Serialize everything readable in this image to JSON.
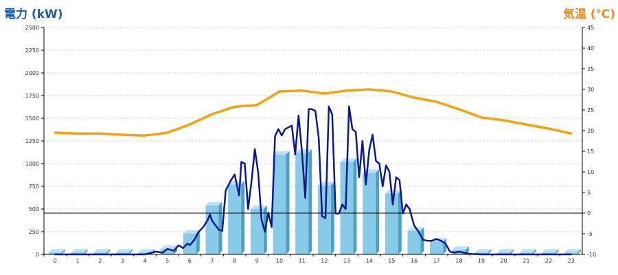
{
  "chart_data": {
    "type": "bar",
    "title": "",
    "left_axis": {
      "label": "電力 (kW)",
      "range": [
        0,
        2500
      ],
      "ticks": [
        0,
        250,
        500,
        750,
        1000,
        1250,
        1500,
        1750,
        2000,
        2250,
        2500
      ]
    },
    "right_axis": {
      "label": "気温 (℃)",
      "range": [
        -10,
        45
      ],
      "ticks": [
        -10,
        -5,
        0,
        5,
        10,
        15,
        20,
        25,
        30,
        35,
        40,
        45
      ]
    },
    "categories": [
      "0",
      "1",
      "2",
      "3",
      "4",
      "5",
      "6",
      "7",
      "8",
      "9",
      "10",
      "11",
      "12",
      "13",
      "14",
      "15",
      "16",
      "17",
      "18",
      "19",
      "20",
      "21",
      "22",
      "23"
    ],
    "grid": true,
    "series": [
      {
        "kind": "bar",
        "axis": "left",
        "color": "#87cbe8",
        "values": [
          20,
          20,
          20,
          20,
          20,
          60,
          230,
          540,
          770,
          500,
          1100,
          1120,
          760,
          1020,
          900,
          670,
          260,
          140,
          50,
          20,
          20,
          20,
          20,
          20
        ]
      },
      {
        "kind": "line",
        "axis": "left",
        "color": "#0a1a8c",
        "x": [
          0,
          1,
          2,
          3,
          4,
          4.5,
          4.8,
          5.0,
          5.3,
          5.5,
          5.7,
          5.9,
          6.0,
          6.2,
          6.4,
          6.6,
          6.8,
          6.9,
          7.0,
          7.3,
          7.45,
          7.6,
          7.8,
          8.0,
          8.2,
          8.3,
          8.45,
          8.6,
          8.75,
          8.9,
          9.05,
          9.2,
          9.35,
          9.5,
          9.65,
          9.8,
          9.95,
          10.1,
          10.25,
          10.4,
          10.55,
          10.7,
          10.85,
          11.0,
          11.15,
          11.3,
          11.45,
          11.6,
          11.75,
          11.9,
          12.05,
          12.2,
          12.35,
          12.5,
          12.65,
          12.8,
          12.95,
          13.1,
          13.25,
          13.4,
          13.55,
          13.7,
          13.85,
          14.0,
          14.15,
          14.3,
          14.45,
          14.6,
          14.75,
          14.9,
          15.05,
          15.2,
          15.35,
          15.5,
          15.65,
          15.8,
          16.0,
          16.2,
          16.4,
          16.6,
          16.8,
          17.0,
          17.2,
          17.4,
          17.6,
          17.8,
          18.0,
          18.2,
          18.5,
          19,
          20,
          21,
          22,
          23
        ],
        "values": [
          0,
          0,
          0,
          0,
          0,
          30,
          20,
          60,
          40,
          100,
          70,
          120,
          100,
          160,
          250,
          300,
          380,
          440,
          370,
          270,
          260,
          700,
          800,
          880,
          650,
          1020,
          1000,
          500,
          800,
          1160,
          900,
          380,
          250,
          460,
          300,
          1300,
          1380,
          1310,
          1380,
          1400,
          1420,
          1100,
          1530,
          1130,
          620,
          1600,
          1600,
          1580,
          1280,
          420,
          400,
          1630,
          1540,
          450,
          450,
          550,
          500,
          1630,
          1380,
          1350,
          850,
          1250,
          770,
          1150,
          1320,
          1030,
          1000,
          750,
          980,
          910,
          550,
          850,
          820,
          450,
          550,
          500,
          320,
          250,
          160,
          150,
          150,
          170,
          150,
          120,
          30,
          20,
          30,
          20,
          5,
          0,
          0,
          0,
          0,
          0
        ]
      },
      {
        "kind": "line",
        "axis": "right",
        "color": "#f5a20c",
        "x": [
          0,
          1,
          2,
          3,
          4,
          5,
          6,
          7,
          8,
          9,
          10,
          11,
          12,
          13,
          14,
          15,
          16,
          17,
          18,
          19,
          20,
          21,
          22,
          23
        ],
        "values": [
          19.5,
          19.3,
          19.3,
          19.0,
          18.8,
          19.5,
          21.5,
          24.0,
          25.8,
          26.2,
          29.5,
          29.7,
          29.0,
          29.7,
          30.0,
          29.5,
          28.0,
          27.0,
          25.2,
          23.2,
          22.5,
          21.5,
          20.5,
          19.3
        ]
      }
    ]
  }
}
